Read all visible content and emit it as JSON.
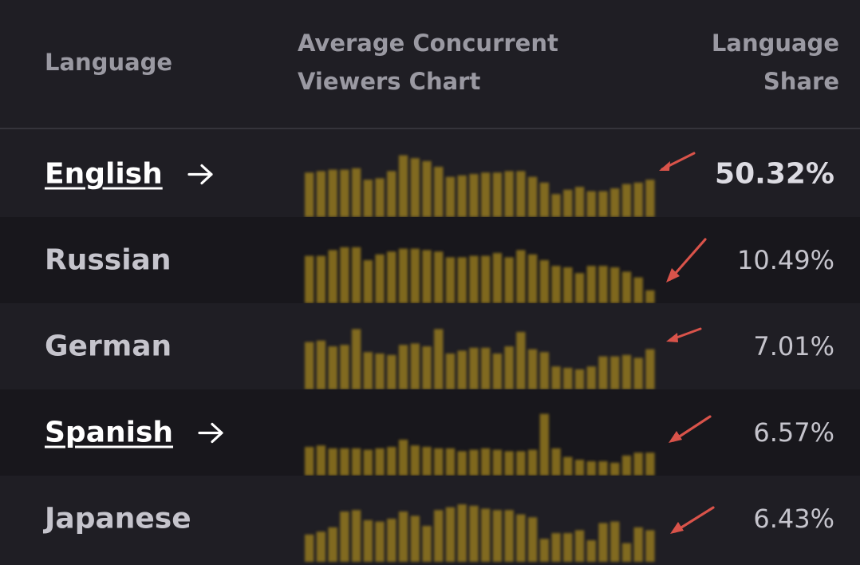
{
  "header": {
    "language": "Language",
    "chart_line1": "Average Concurrent",
    "chart_line2": "Viewers Chart",
    "share_line1": "Language",
    "share_line2": "Share"
  },
  "colors": {
    "bar": "#a8881f",
    "annotation_arrow": "#d9534a",
    "link_text": "#ffffff"
  },
  "rows": [
    {
      "language": "English",
      "share": "50.32%",
      "is_link": true,
      "bars": [
        0.62,
        0.64,
        0.66,
        0.66,
        0.68,
        0.52,
        0.54,
        0.64,
        0.86,
        0.82,
        0.78,
        0.7,
        0.56,
        0.58,
        0.6,
        0.62,
        0.62,
        0.64,
        0.64,
        0.56,
        0.48,
        0.32,
        0.38,
        0.42,
        0.36,
        0.36,
        0.4,
        0.46,
        0.48,
        0.52
      ]
    },
    {
      "language": "Russian",
      "share": "10.49%",
      "is_link": false,
      "bars": [
        0.66,
        0.66,
        0.74,
        0.78,
        0.78,
        0.6,
        0.68,
        0.72,
        0.76,
        0.76,
        0.74,
        0.72,
        0.64,
        0.64,
        0.66,
        0.66,
        0.7,
        0.64,
        0.74,
        0.68,
        0.6,
        0.52,
        0.5,
        0.42,
        0.52,
        0.52,
        0.5,
        0.44,
        0.36,
        0.18
      ]
    },
    {
      "language": "German",
      "share": "7.01%",
      "is_link": false,
      "bars": [
        0.66,
        0.68,
        0.6,
        0.62,
        0.84,
        0.52,
        0.5,
        0.48,
        0.62,
        0.64,
        0.6,
        0.84,
        0.5,
        0.54,
        0.58,
        0.58,
        0.5,
        0.6,
        0.8,
        0.56,
        0.52,
        0.32,
        0.3,
        0.28,
        0.32,
        0.46,
        0.46,
        0.48,
        0.44,
        0.56
      ]
    },
    {
      "language": "Spanish",
      "share": "6.57%",
      "is_link": true,
      "bars": [
        0.4,
        0.42,
        0.38,
        0.38,
        0.38,
        0.36,
        0.38,
        0.4,
        0.5,
        0.42,
        0.4,
        0.38,
        0.38,
        0.34,
        0.36,
        0.38,
        0.36,
        0.34,
        0.34,
        0.36,
        0.86,
        0.38,
        0.26,
        0.22,
        0.2,
        0.2,
        0.18,
        0.28,
        0.32,
        0.32
      ]
    },
    {
      "language": "Japanese",
      "share": "6.43%",
      "is_link": false,
      "bars": [
        0.38,
        0.42,
        0.48,
        0.7,
        0.72,
        0.58,
        0.56,
        0.6,
        0.7,
        0.64,
        0.5,
        0.72,
        0.76,
        0.8,
        0.78,
        0.74,
        0.72,
        0.72,
        0.66,
        0.62,
        0.32,
        0.4,
        0.4,
        0.44,
        0.3,
        0.54,
        0.56,
        0.26,
        0.48,
        0.44
      ]
    }
  ]
}
